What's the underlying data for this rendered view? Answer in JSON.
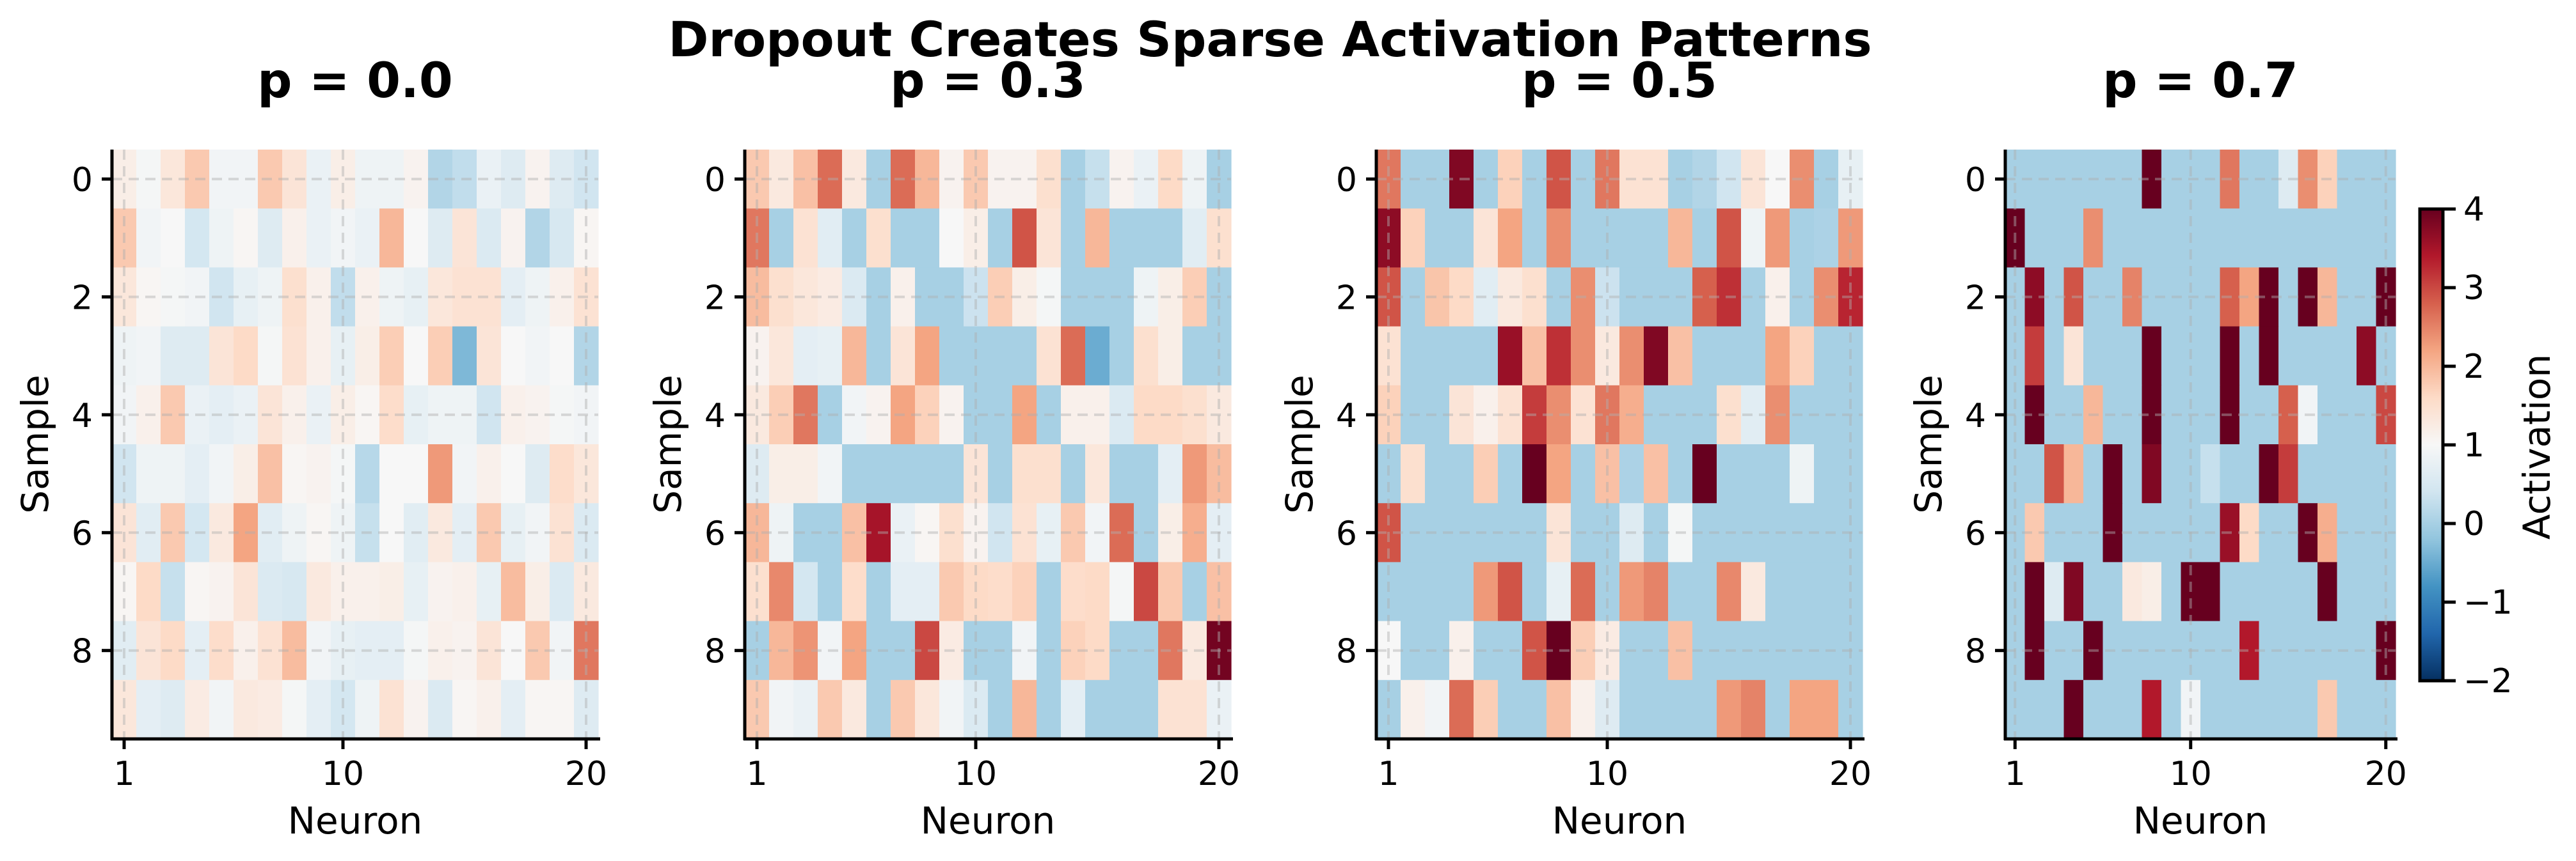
{
  "title": "Dropout Creates Sparse Activation Patterns",
  "colorbar": {
    "label": "Activation",
    "colormap": "RdBu_r",
    "vmin": -2,
    "vmax": 4,
    "ticks": [
      "4",
      "3",
      "2",
      "1",
      "0",
      "−1",
      "−2"
    ],
    "tick_values": [
      4,
      3,
      2,
      1,
      0,
      -1,
      -2
    ],
    "colors": [
      "#053061",
      "#2166ac",
      "#4393c3",
      "#92c5de",
      "#d1e5f0",
      "#f7f7f7",
      "#fddbc7",
      "#f4a582",
      "#d6604d",
      "#b2182b",
      "#67001f"
    ]
  },
  "chart_data": [
    {
      "type": "heatmap",
      "title": "p = 0.0",
      "xlabel": "Neuron",
      "ylabel": "Sample",
      "xticks": [
        "1",
        "10",
        "20"
      ],
      "xtick_values": [
        1,
        10,
        20
      ],
      "yticks": [
        "0",
        "2",
        "4",
        "6",
        "8"
      ],
      "ytick_values": [
        0,
        2,
        4,
        6,
        8
      ],
      "grid": true,
      "values": [
        [
          1.2,
          0.95,
          1.35,
          1.8,
          0.9,
          0.9,
          1.8,
          1.4,
          0.8,
          1.2,
          0.85,
          0.85,
          1.1,
          0.1,
          0.25,
          0.8,
          0.6,
          1.1,
          0.6,
          0.4
        ],
        [
          1.8,
          0.9,
          1.0,
          0.45,
          0.85,
          1.05,
          0.6,
          1.15,
          0.8,
          0.9,
          0.8,
          2.0,
          1.0,
          0.6,
          1.4,
          0.55,
          1.1,
          0.1,
          0.5,
          1.05
        ],
        [
          1.35,
          1.05,
          0.95,
          0.9,
          0.4,
          0.75,
          0.85,
          1.5,
          1.15,
          0.25,
          1.15,
          0.85,
          0.75,
          1.35,
          1.45,
          1.45,
          0.7,
          0.85,
          1.15,
          1.45
        ],
        [
          0.85,
          0.9,
          0.6,
          0.6,
          1.4,
          1.6,
          0.95,
          1.45,
          1.15,
          0.75,
          1.2,
          1.75,
          1.0,
          1.75,
          -0.35,
          1.4,
          1.0,
          0.9,
          1.0,
          0.1
        ],
        [
          0.9,
          1.15,
          1.8,
          0.8,
          0.7,
          0.8,
          1.4,
          1.15,
          0.8,
          1.2,
          1.05,
          1.55,
          0.75,
          0.85,
          0.85,
          0.4,
          1.15,
          1.1,
          0.95,
          0.9
        ],
        [
          0.4,
          0.85,
          0.85,
          0.7,
          0.9,
          1.2,
          1.9,
          1.05,
          1.1,
          0.95,
          0.15,
          1.0,
          1.0,
          2.3,
          0.9,
          1.15,
          1.0,
          0.6,
          1.55,
          1.35
        ],
        [
          1.4,
          0.65,
          1.8,
          0.45,
          1.3,
          2.2,
          0.65,
          0.85,
          1.05,
          0.85,
          0.3,
          1.0,
          0.65,
          1.3,
          0.7,
          1.8,
          0.75,
          0.9,
          1.45,
          0.55
        ],
        [
          1.05,
          1.6,
          0.3,
          1.05,
          1.1,
          1.4,
          0.55,
          0.5,
          1.3,
          1.15,
          1.15,
          1.2,
          0.75,
          1.1,
          1.15,
          0.75,
          1.95,
          1.2,
          0.55,
          1.3
        ],
        [
          0.65,
          1.4,
          1.6,
          0.7,
          1.55,
          1.15,
          1.45,
          1.95,
          0.9,
          0.75,
          0.7,
          0.7,
          0.95,
          1.15,
          1.1,
          1.4,
          1.0,
          1.8,
          0.9,
          2.6
        ],
        [
          1.35,
          0.7,
          0.6,
          1.25,
          0.9,
          1.3,
          1.25,
          0.95,
          0.7,
          0.45,
          0.85,
          1.45,
          1.1,
          0.55,
          1.05,
          1.15,
          0.7,
          1.05,
          1.05,
          0.6
        ]
      ]
    },
    {
      "type": "heatmap",
      "title": "p = 0.3",
      "xlabel": "Neuron",
      "ylabel": "Sample",
      "xticks": [
        "1",
        "10",
        "20"
      ],
      "xtick_values": [
        1,
        10,
        20
      ],
      "yticks": [
        "0",
        "2",
        "4",
        "6",
        "8"
      ],
      "ytick_values": [
        0,
        2,
        4,
        6,
        8
      ],
      "grid": true,
      "values": [
        [
          1.8,
          1.3,
          1.9,
          2.7,
          1.3,
          0,
          2.7,
          2.0,
          1.1,
          1.8,
          1.1,
          1.1,
          1.5,
          0,
          0.3,
          1.1,
          0.8,
          1.6,
          0.85,
          0
        ],
        [
          2.6,
          0,
          1.45,
          0.65,
          0,
          1.5,
          0,
          0,
          1.0,
          1.2,
          0,
          2.9,
          1.4,
          0,
          2.0,
          0,
          0,
          0,
          0.65,
          1.5
        ],
        [
          1.95,
          1.5,
          1.35,
          1.25,
          0.55,
          0,
          1.15,
          0,
          0,
          0.35,
          1.75,
          1.2,
          0.95,
          0,
          0,
          0,
          0.85,
          1.2,
          1.75,
          0
        ],
        [
          1.1,
          1.35,
          0.7,
          0.75,
          2.0,
          0,
          1.4,
          2.2,
          0,
          0,
          0,
          0,
          1.45,
          2.7,
          -0.5,
          0,
          1.5,
          1.2,
          0,
          0
        ],
        [
          1.3,
          1.75,
          2.6,
          0,
          0.9,
          1.1,
          2.2,
          1.7,
          1.1,
          0,
          0,
          2.2,
          0,
          1.15,
          1.15,
          0.55,
          1.6,
          1.6,
          1.5,
          1.3
        ],
        [
          0.6,
          1.2,
          1.2,
          0.9,
          0,
          0,
          0,
          0,
          0,
          1.4,
          0,
          1.5,
          1.5,
          0,
          1.35,
          0,
          0,
          0.7,
          2.3,
          1.95
        ],
        [
          2.0,
          0.85,
          0,
          0,
          1.9,
          3.5,
          0.8,
          1.05,
          1.5,
          1.1,
          0.4,
          1.45,
          0.75,
          1.8,
          0.9,
          2.7,
          0,
          1.2,
          2.1,
          0.7
        ],
        [
          1.5,
          2.45,
          0.45,
          0,
          1.55,
          0,
          0.7,
          0.7,
          1.8,
          1.6,
          1.55,
          1.7,
          0,
          1.55,
          1.6,
          0.95,
          3.0,
          1.8,
          0,
          1.9
        ],
        [
          0,
          2.0,
          2.35,
          0.9,
          2.2,
          0,
          0,
          3.0,
          1.25,
          0,
          0,
          0.9,
          0,
          1.7,
          1.6,
          0,
          0,
          2.6,
          1.3,
          3.9
        ],
        [
          1.8,
          0.9,
          0.8,
          1.8,
          1.3,
          0,
          1.8,
          1.35,
          0.9,
          0.55,
          0,
          2.0,
          0,
          0.7,
          0,
          0,
          0,
          1.45,
          1.45,
          0.8
        ]
      ]
    },
    {
      "type": "heatmap",
      "title": "p = 0.5",
      "xlabel": "Neuron",
      "ylabel": "Sample",
      "xticks": [
        "1",
        "10",
        "20"
      ],
      "xtick_values": [
        1,
        10,
        20
      ],
      "yticks": [
        "0",
        "2",
        "4",
        "6",
        "8"
      ],
      "ytick_values": [
        0,
        2,
        4,
        6,
        8
      ],
      "grid": true,
      "values": [
        [
          2.6,
          0,
          0,
          3.8,
          0,
          1.7,
          0,
          2.9,
          0,
          2.6,
          1.45,
          1.45,
          0,
          0.1,
          0.4,
          1.4,
          1.0,
          2.4,
          0,
          0.75
        ],
        [
          3.7,
          1.7,
          0,
          0,
          1.4,
          2.2,
          0,
          2.4,
          0,
          0,
          0,
          0,
          2.0,
          0,
          2.9,
          0.85,
          2.3,
          0,
          0.05,
          2.3
        ],
        [
          2.9,
          0,
          1.85,
          1.6,
          0.65,
          1.3,
          1.5,
          0,
          2.4,
          0.35,
          0,
          0,
          0,
          2.8,
          3.2,
          0,
          1.15,
          0,
          2.4,
          3.3
        ],
        [
          1.45,
          0,
          0,
          0,
          0,
          3.6,
          1.9,
          3.2,
          2.4,
          1.3,
          2.4,
          3.8,
          1.9,
          0,
          0,
          0,
          2.2,
          1.7,
          0,
          0
        ],
        [
          1.7,
          0,
          0,
          1.4,
          1.15,
          1.45,
          3.1,
          2.4,
          1.45,
          2.6,
          2.1,
          0,
          0,
          0,
          1.5,
          0.65,
          2.4,
          0,
          0,
          0
        ],
        [
          0,
          1.5,
          0,
          0,
          1.75,
          0,
          4.5,
          2.2,
          0,
          1.9,
          0.05,
          1.9,
          0,
          4.6,
          0,
          0,
          0,
          0.85,
          0,
          0
        ],
        [
          2.9,
          0,
          0,
          0,
          0,
          0,
          0,
          1.4,
          0,
          0,
          0.6,
          0,
          0.95,
          0,
          0,
          0,
          0,
          0,
          0,
          0
        ],
        [
          0,
          0,
          0,
          0,
          2.3,
          2.9,
          0,
          0.75,
          2.7,
          0,
          2.3,
          2.5,
          0,
          0,
          2.45,
          1.3,
          0,
          0,
          0,
          0
        ],
        [
          1.0,
          0,
          0,
          1.15,
          0,
          0,
          2.9,
          4.5,
          1.75,
          1.25,
          0,
          0,
          1.9,
          0,
          0,
          0,
          0,
          0,
          0,
          0
        ],
        [
          0,
          1.15,
          0.9,
          2.7,
          1.75,
          0,
          0,
          1.9,
          1.15,
          0.6,
          0,
          0,
          0,
          0,
          2.3,
          2.5,
          0,
          2.2,
          2.2,
          0
        ]
      ]
    },
    {
      "type": "heatmap",
      "title": "p = 0.7",
      "xlabel": "Neuron",
      "ylabel": "Sample",
      "xticks": [
        "1",
        "10",
        "20"
      ],
      "xtick_values": [
        1,
        10,
        20
      ],
      "yticks": [
        "0",
        "2",
        "4",
        "6",
        "8"
      ],
      "ytick_values": [
        0,
        2,
        4,
        6,
        8
      ],
      "grid": true,
      "values": [
        [
          0,
          0,
          0,
          0,
          0,
          0,
          0,
          4.5,
          0,
          0,
          0,
          2.6,
          0,
          0,
          0.6,
          2.4,
          1.7,
          0,
          0,
          0
        ],
        [
          4.5,
          0,
          0,
          0,
          2.4,
          0,
          0,
          0,
          0,
          0,
          0,
          0,
          0,
          0,
          0,
          0,
          0,
          0,
          0,
          0
        ],
        [
          0,
          3.7,
          0,
          2.9,
          0,
          0,
          2.5,
          0,
          0,
          0,
          0,
          2.8,
          2.2,
          4.5,
          0,
          4.5,
          2.0,
          0,
          0,
          4.5
        ],
        [
          0,
          3.1,
          0,
          1.4,
          0,
          0,
          0,
          4.5,
          0,
          0,
          0,
          4.5,
          0,
          4.5,
          0,
          0,
          0,
          0,
          3.7,
          0
        ],
        [
          0,
          4.5,
          0,
          0,
          2.0,
          0,
          0,
          4.2,
          0,
          0,
          0,
          4.5,
          0,
          0,
          2.8,
          0.9,
          0,
          0,
          0,
          3.0
        ],
        [
          0,
          0,
          2.9,
          2.0,
          0,
          4.5,
          0,
          3.8,
          0,
          0,
          0.3,
          0,
          0,
          4.5,
          3.1,
          0,
          0,
          0,
          0,
          0
        ],
        [
          0,
          1.8,
          0,
          0,
          0,
          4.5,
          0,
          0,
          0,
          0,
          0,
          3.6,
          1.6,
          0,
          0,
          4.5,
          2.1,
          0,
          0,
          0
        ],
        [
          0,
          4.5,
          0.6,
          3.8,
          0,
          0,
          1.3,
          1.2,
          0,
          4.5,
          4.2,
          0,
          0,
          0,
          0,
          0,
          4.5,
          0,
          0,
          0
        ],
        [
          0,
          4.5,
          0,
          0,
          4.5,
          0,
          0,
          0,
          0,
          0,
          0,
          0,
          3.4,
          0,
          0,
          0,
          0,
          0,
          0,
          4.5
        ],
        [
          0,
          0,
          0,
          4.5,
          0,
          0,
          0,
          3.4,
          0,
          0.9,
          0,
          0,
          0,
          0,
          0,
          0,
          1.8,
          0,
          0,
          0
        ]
      ]
    }
  ]
}
